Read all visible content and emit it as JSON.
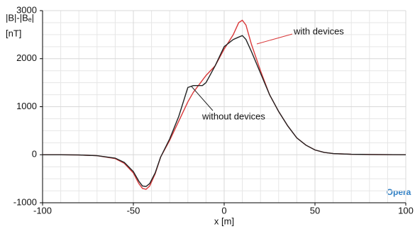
{
  "chart_data": {
    "type": "line",
    "ylabel": "|B|-|Bₑ|",
    "yunit": "[nT]",
    "xlabel": "x [m]",
    "x": [
      -100,
      -90,
      -80,
      -70,
      -60,
      -55,
      -50,
      -47,
      -45,
      -43,
      -41,
      -38,
      -35,
      -30,
      -25,
      -20,
      -17,
      -12,
      -10,
      -5,
      0,
      5,
      8,
      10,
      12,
      15,
      20,
      25,
      30,
      35,
      40,
      45,
      50,
      55,
      60,
      70,
      80,
      100
    ],
    "series": [
      {
        "name": "with devices",
        "color": "#d9393a",
        "values": [
          0,
          0,
          -5,
          -20,
          -80,
          -180,
          -380,
          -600,
          -700,
          -720,
          -650,
          -400,
          -50,
          300,
          700,
          1100,
          1300,
          1550,
          1650,
          1850,
          2200,
          2500,
          2750,
          2800,
          2700,
          2300,
          1750,
          1250,
          900,
          600,
          350,
          200,
          100,
          50,
          25,
          10,
          5,
          0
        ]
      },
      {
        "name": "without devices",
        "color": "#222222",
        "values": [
          0,
          0,
          -5,
          -20,
          -70,
          -160,
          -350,
          -550,
          -650,
          -660,
          -600,
          -380,
          -50,
          330,
          800,
          1400,
          1440,
          1440,
          1500,
          1850,
          2250,
          2400,
          2450,
          2480,
          2400,
          2150,
          1700,
          1250,
          900,
          600,
          350,
          200,
          100,
          50,
          25,
          10,
          5,
          0
        ]
      }
    ],
    "xlim": [
      -100,
      100
    ],
    "xticks": [
      -100,
      -50,
      0,
      50,
      100
    ],
    "ylim": [
      -1000,
      3000
    ],
    "yticks": [
      -1000,
      0,
      1000,
      2000,
      3000
    ],
    "grid": true,
    "logo": "Opera"
  }
}
